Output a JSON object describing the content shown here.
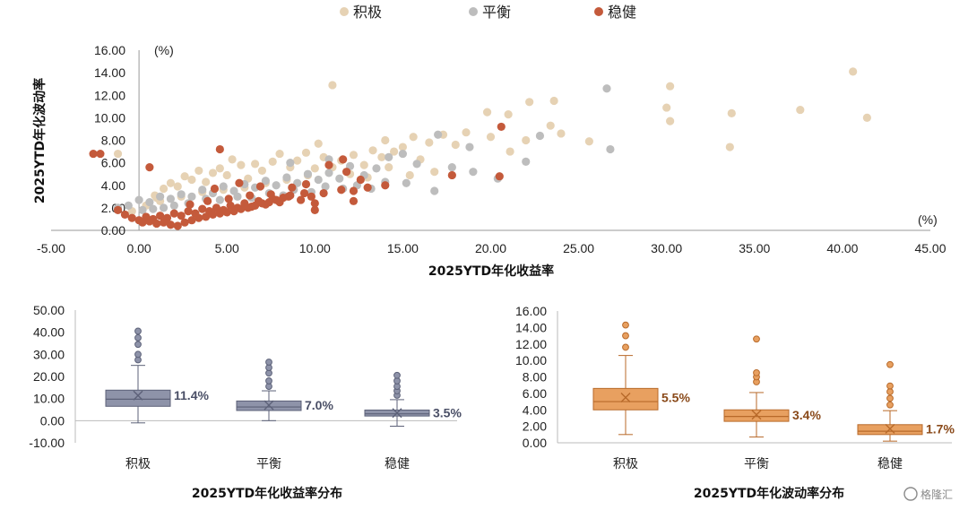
{
  "colors": {
    "积极": "#e6d2b4",
    "平衡": "#bdbdbd",
    "稳健": "#c45a3b",
    "box_ret": "#8e93a9",
    "box_ret_edge": "#5c6178",
    "box_vol": "#e8a060",
    "box_vol_edge": "#b86a2a",
    "label_ret": "#4a4f66",
    "label_vol": "#8a4a1a"
  },
  "legend": [
    "积极",
    "平衡",
    "稳健"
  ],
  "watermark": "格隆汇",
  "chart_data": [
    {
      "type": "scatter",
      "title": "",
      "xlabel": "2025YTD年化收益率",
      "ylabel": "2025YTD年化波动率",
      "x_unit": "(%)",
      "y_unit": "(%)",
      "xlim": [
        -5,
        45
      ],
      "ylim": [
        0,
        16
      ],
      "xticks": [
        "-5.00",
        "0.00",
        "5.00",
        "10.00",
        "15.00",
        "20.00",
        "25.00",
        "30.00",
        "35.00",
        "40.00",
        "45.00"
      ],
      "yticks": [
        "0.00",
        "2.00",
        "4.00",
        "6.00",
        "8.00",
        "10.00",
        "12.00",
        "14.00",
        "16.00"
      ],
      "grid": false,
      "legend_position": "top",
      "series": [
        {
          "name": "积极",
          "points": [
            [
              40.6,
              14.1
            ],
            [
              30.2,
              12.8
            ],
            [
              30.0,
              10.9
            ],
            [
              30.2,
              9.7
            ],
            [
              33.7,
              10.4
            ],
            [
              37.6,
              10.7
            ],
            [
              41.4,
              10.0
            ],
            [
              33.6,
              7.4
            ],
            [
              23.6,
              11.5
            ],
            [
              22.2,
              11.4
            ],
            [
              21.0,
              10.3
            ],
            [
              19.8,
              10.5
            ],
            [
              23.4,
              9.3
            ],
            [
              24.0,
              8.6
            ],
            [
              25.6,
              7.9
            ],
            [
              22.0,
              8.0
            ],
            [
              21.1,
              7.0
            ],
            [
              20.0,
              8.3
            ],
            [
              18.0,
              7.6
            ],
            [
              17.3,
              8.5
            ],
            [
              16.5,
              7.8
            ],
            [
              15.6,
              8.3
            ],
            [
              15.0,
              7.4
            ],
            [
              14.5,
              7.0
            ],
            [
              13.8,
              6.5
            ],
            [
              13.3,
              7.1
            ],
            [
              12.8,
              5.8
            ],
            [
              12.2,
              6.7
            ],
            [
              11.5,
              6.2
            ],
            [
              11.0,
              5.6
            ],
            [
              10.5,
              6.5
            ],
            [
              10.0,
              5.5
            ],
            [
              9.5,
              6.9
            ],
            [
              9.0,
              6.2
            ],
            [
              8.6,
              5.6
            ],
            [
              8.0,
              6.8
            ],
            [
              7.6,
              6.1
            ],
            [
              7.0,
              5.3
            ],
            [
              6.6,
              5.9
            ],
            [
              6.2,
              4.6
            ],
            [
              5.8,
              5.8
            ],
            [
              5.3,
              6.3
            ],
            [
              5.0,
              4.9
            ],
            [
              4.6,
              5.5
            ],
            [
              4.2,
              5.1
            ],
            [
              3.8,
              4.3
            ],
            [
              3.4,
              5.3
            ],
            [
              3.0,
              4.5
            ],
            [
              2.6,
              4.8
            ],
            [
              2.2,
              3.9
            ],
            [
              1.8,
              4.2
            ],
            [
              1.4,
              3.7
            ],
            [
              0.9,
              3.1
            ],
            [
              11.0,
              12.9
            ],
            [
              14.2,
              5.6
            ],
            [
              15.4,
              4.9
            ],
            [
              16.8,
              5.2
            ],
            [
              18.6,
              8.7
            ],
            [
              13.0,
              4.7
            ],
            [
              12.0,
              5.0
            ],
            [
              9.6,
              4.9
            ],
            [
              8.4,
              4.5
            ],
            [
              7.2,
              4.2
            ],
            [
              6.0,
              3.8
            ],
            [
              4.8,
              3.6
            ],
            [
              3.6,
              3.4
            ],
            [
              2.4,
              3.0
            ],
            [
              1.2,
              2.6
            ],
            [
              0.4,
              2.2
            ],
            [
              -0.4,
              1.7
            ],
            [
              -1.2,
              6.8
            ],
            [
              1.0,
              2.9
            ],
            [
              10.2,
              7.7
            ],
            [
              14.0,
              8.0
            ],
            [
              16.0,
              6.3
            ]
          ]
        },
        {
          "name": "平衡",
          "points": [
            [
              26.6,
              12.6
            ],
            [
              22.8,
              8.4
            ],
            [
              26.8,
              7.2
            ],
            [
              22.0,
              6.1
            ],
            [
              20.4,
              4.6
            ],
            [
              19.0,
              5.2
            ],
            [
              17.8,
              5.6
            ],
            [
              16.8,
              3.5
            ],
            [
              15.8,
              5.9
            ],
            [
              15.0,
              6.8
            ],
            [
              14.2,
              6.5
            ],
            [
              13.5,
              5.5
            ],
            [
              12.8,
              4.9
            ],
            [
              12.0,
              5.7
            ],
            [
              11.4,
              4.6
            ],
            [
              10.8,
              5.1
            ],
            [
              10.2,
              4.5
            ],
            [
              9.6,
              5.0
            ],
            [
              9.0,
              4.2
            ],
            [
              8.4,
              4.7
            ],
            [
              7.8,
              4.0
            ],
            [
              7.2,
              4.4
            ],
            [
              6.6,
              3.8
            ],
            [
              6.0,
              4.1
            ],
            [
              5.4,
              3.5
            ],
            [
              4.8,
              3.9
            ],
            [
              4.2,
              3.3
            ],
            [
              3.6,
              3.6
            ],
            [
              3.0,
              3.0
            ],
            [
              2.4,
              3.2
            ],
            [
              1.8,
              2.8
            ],
            [
              1.2,
              3.0
            ],
            [
              0.6,
              2.5
            ],
            [
              0.0,
              2.7
            ],
            [
              -0.6,
              2.2
            ],
            [
              -1.2,
              2.0
            ],
            [
              14.0,
              4.3
            ],
            [
              12.4,
              4.0
            ],
            [
              11.6,
              3.7
            ],
            [
              10.6,
              3.9
            ],
            [
              9.8,
              3.4
            ],
            [
              8.8,
              3.6
            ],
            [
              8.2,
              3.1
            ],
            [
              7.4,
              3.3
            ],
            [
              6.4,
              2.9
            ],
            [
              5.6,
              3.0
            ],
            [
              4.6,
              2.7
            ],
            [
              3.8,
              2.8
            ],
            [
              2.8,
              2.4
            ],
            [
              2.0,
              2.2
            ],
            [
              1.4,
              2.0
            ],
            [
              0.8,
              1.9
            ],
            [
              0.2,
              1.8
            ],
            [
              10.8,
              6.3
            ],
            [
              8.6,
              6.0
            ],
            [
              13.2,
              3.7
            ],
            [
              15.2,
              4.2
            ],
            [
              17.0,
              8.5
            ],
            [
              18.8,
              7.4
            ]
          ]
        },
        {
          "name": "稳健",
          "points": [
            [
              -2.6,
              6.8
            ],
            [
              -2.2,
              6.8
            ],
            [
              0.6,
              5.6
            ],
            [
              4.6,
              7.2
            ],
            [
              10.8,
              5.8
            ],
            [
              11.6,
              6.3
            ],
            [
              11.8,
              5.2
            ],
            [
              20.6,
              9.2
            ],
            [
              20.5,
              4.8
            ],
            [
              17.8,
              4.9
            ],
            [
              14.0,
              4.0
            ],
            [
              13.0,
              3.8
            ],
            [
              12.2,
              3.5
            ],
            [
              11.5,
              3.6
            ],
            [
              10.5,
              3.3
            ],
            [
              9.8,
              3.0
            ],
            [
              9.2,
              2.7
            ],
            [
              8.5,
              3.0
            ],
            [
              8.0,
              2.5
            ],
            [
              7.6,
              2.8
            ],
            [
              7.2,
              2.3
            ],
            [
              6.8,
              2.6
            ],
            [
              6.4,
              2.1
            ],
            [
              6.0,
              2.4
            ],
            [
              5.6,
              2.0
            ],
            [
              5.2,
              2.2
            ],
            [
              4.8,
              1.8
            ],
            [
              4.4,
              2.0
            ],
            [
              4.0,
              1.7
            ],
            [
              3.6,
              1.9
            ],
            [
              3.2,
              1.5
            ],
            [
              2.8,
              1.7
            ],
            [
              2.4,
              1.3
            ],
            [
              2.0,
              1.5
            ],
            [
              1.6,
              1.1
            ],
            [
              1.2,
              1.3
            ],
            [
              0.8,
              1.0
            ],
            [
              0.4,
              1.2
            ],
            [
              0.0,
              0.9
            ],
            [
              -0.4,
              1.1
            ],
            [
              -0.8,
              1.4
            ],
            [
              -1.2,
              1.8
            ],
            [
              1.8,
              0.5
            ],
            [
              2.2,
              0.4
            ],
            [
              2.6,
              0.7
            ],
            [
              3.0,
              0.9
            ],
            [
              3.4,
              1.1
            ],
            [
              3.8,
              1.2
            ],
            [
              4.2,
              1.4
            ],
            [
              4.6,
              1.5
            ],
            [
              5.0,
              1.6
            ],
            [
              5.4,
              1.7
            ],
            [
              5.8,
              1.9
            ],
            [
              6.2,
              2.0
            ],
            [
              6.6,
              2.2
            ],
            [
              7.0,
              2.4
            ],
            [
              7.4,
              2.5
            ],
            [
              7.8,
              2.7
            ],
            [
              8.2,
              2.9
            ],
            [
              8.6,
              3.1
            ],
            [
              9.4,
              3.3
            ],
            [
              10.0,
              2.4
            ],
            [
              10.0,
              1.8
            ],
            [
              1.4,
              0.7
            ],
            [
              1.0,
              0.6
            ],
            [
              0.6,
              0.8
            ],
            [
              0.2,
              0.7
            ],
            [
              2.9,
              2.3
            ],
            [
              3.9,
              2.6
            ],
            [
              5.1,
              2.8
            ],
            [
              6.3,
              3.1
            ],
            [
              7.5,
              3.2
            ],
            [
              6.9,
              3.9
            ],
            [
              5.7,
              4.2
            ],
            [
              4.3,
              3.7
            ],
            [
              8.7,
              3.8
            ],
            [
              9.5,
              4.1
            ],
            [
              12.6,
              4.5
            ],
            [
              12.2,
              2.6
            ]
          ]
        }
      ]
    },
    {
      "type": "box",
      "title": "2025YTD年化收益率分布",
      "ylim": [
        -10,
        50
      ],
      "yticks": [
        "-10.00",
        "0.00",
        "10.00",
        "20.00",
        "30.00",
        "40.00",
        "50.00"
      ],
      "categories": [
        "积极",
        "平衡",
        "稳健"
      ],
      "boxes": [
        {
          "min": -1.0,
          "q1": 6.5,
          "median": 9.7,
          "q3": 13.8,
          "max": 25.0,
          "mean": 11.4,
          "label": "11.4%",
          "outliers": [
            27.5,
            30.0,
            34.5,
            37.5,
            40.5
          ]
        },
        {
          "min": 0.0,
          "q1": 4.6,
          "median": 6.2,
          "q3": 8.9,
          "max": 13.5,
          "mean": 7.0,
          "label": "7.0%",
          "outliers": [
            15.5,
            18.0,
            21.5,
            24.0,
            26.5
          ]
        },
        {
          "min": -2.5,
          "q1": 2.1,
          "median": 3.1,
          "q3": 4.8,
          "max": 9.5,
          "mean": 3.5,
          "label": "3.5%",
          "outliers": [
            11.5,
            13.5,
            15.5,
            18.0,
            20.5
          ]
        }
      ]
    },
    {
      "type": "box",
      "title": "2025YTD年化波动率分布",
      "ylim": [
        0,
        16
      ],
      "yticks": [
        "0.00",
        "2.00",
        "4.00",
        "6.00",
        "8.00",
        "10.00",
        "12.00",
        "14.00",
        "16.00"
      ],
      "categories": [
        "积极",
        "平衡",
        "稳健"
      ],
      "boxes": [
        {
          "min": 1.0,
          "q1": 4.0,
          "median": 5.0,
          "q3": 6.6,
          "max": 10.6,
          "mean": 5.5,
          "label": "5.5%",
          "outliers": [
            11.6,
            13.0,
            14.3
          ]
        },
        {
          "min": 0.7,
          "q1": 2.6,
          "median": 3.2,
          "q3": 4.0,
          "max": 6.1,
          "mean": 3.4,
          "label": "3.4%",
          "outliers": [
            7.4,
            8.0,
            8.5,
            12.6
          ]
        },
        {
          "min": 0.2,
          "q1": 1.0,
          "median": 1.4,
          "q3": 2.2,
          "max": 3.9,
          "mean": 1.7,
          "label": "1.7%",
          "outliers": [
            4.6,
            5.4,
            6.2,
            6.9,
            9.5
          ]
        }
      ]
    }
  ]
}
